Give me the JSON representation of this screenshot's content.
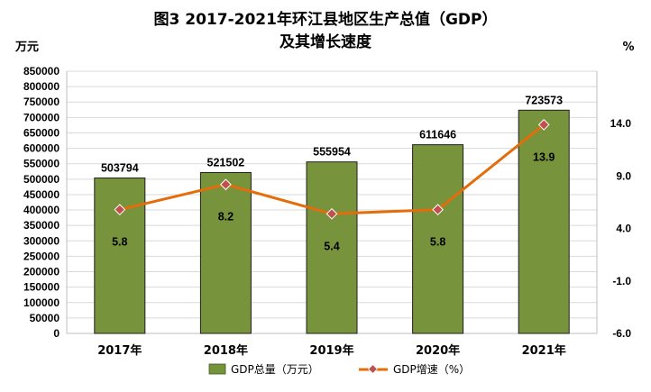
{
  "chart_data": {
    "type": "bar+line",
    "title_line1": "图3   2017-2021年环江县地区生产总值（GDP）",
    "title_line2": "及其增长速度",
    "left_unit": "万元",
    "right_unit": "%",
    "categories": [
      "2017年",
      "2018年",
      "2019年",
      "2020年",
      "2021年"
    ],
    "bar_series": {
      "name": "GDP总量（万元）",
      "values": [
        503794,
        521502,
        555954,
        611646,
        723573
      ],
      "value_labels": [
        "503794",
        "521502",
        "555954",
        "611646",
        "723573"
      ],
      "color": "#77933c"
    },
    "line_series": {
      "name": "GDP增速（%）",
      "values": [
        5.8,
        8.2,
        5.4,
        5.8,
        13.9
      ],
      "value_labels": [
        "5.8",
        "8.2",
        "5.4",
        "5.8",
        "13.9"
      ],
      "line_color": "#e46c0a",
      "marker_color": "#c0504d"
    },
    "left_axis": {
      "min": 0,
      "max": 850000,
      "step": 50000,
      "tick_labels": [
        "0",
        "50000",
        "100000",
        "150000",
        "200000",
        "250000",
        "300000",
        "350000",
        "400000",
        "450000",
        "500000",
        "550000",
        "600000",
        "650000",
        "700000",
        "750000",
        "800000",
        "850000"
      ]
    },
    "right_axis": {
      "min": -6,
      "max": 19,
      "step": 5,
      "tick_labels": [
        "-6.0",
        "-1.0",
        "4.0",
        "9.0",
        "14.0"
      ]
    },
    "grid": true,
    "legend_position": "bottom"
  }
}
